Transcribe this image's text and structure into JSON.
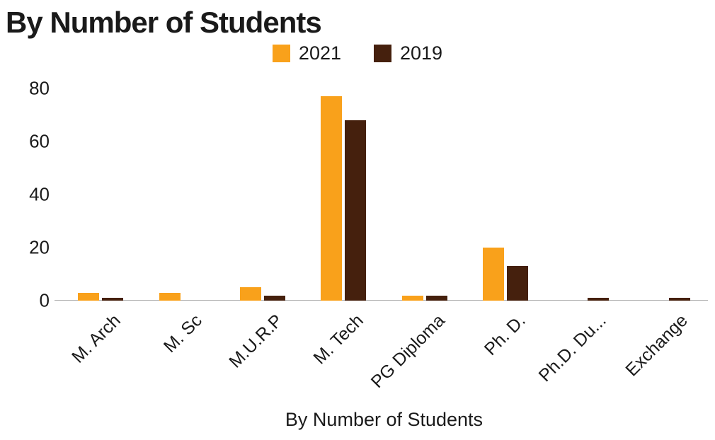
{
  "title": "By Number of Students",
  "chart_data": {
    "type": "bar",
    "title": "By Number of Students",
    "categories": [
      "M. Arch",
      "M. Sc",
      "M.U.R.P",
      "M. Tech",
      "PG Diploma",
      "Ph. D.",
      "Ph.D. Du...",
      "Exchange"
    ],
    "series": [
      {
        "name": "2021",
        "color": "#F9A11B",
        "values": [
          3,
          3,
          5,
          77,
          2,
          20,
          0,
          0
        ]
      },
      {
        "name": "2019",
        "color": "#45200D",
        "values": [
          1,
          0,
          2,
          68,
          2,
          13,
          1,
          1
        ]
      }
    ],
    "xlabel": "By Number of Students",
    "ylabel": "",
    "ylim": [
      0,
      80
    ],
    "yticks": [
      0,
      20,
      40,
      60,
      80
    ],
    "grid": false,
    "legend_position": "top",
    "axis_color": "#b0b0b0",
    "text_color": "#1a1a1a"
  }
}
